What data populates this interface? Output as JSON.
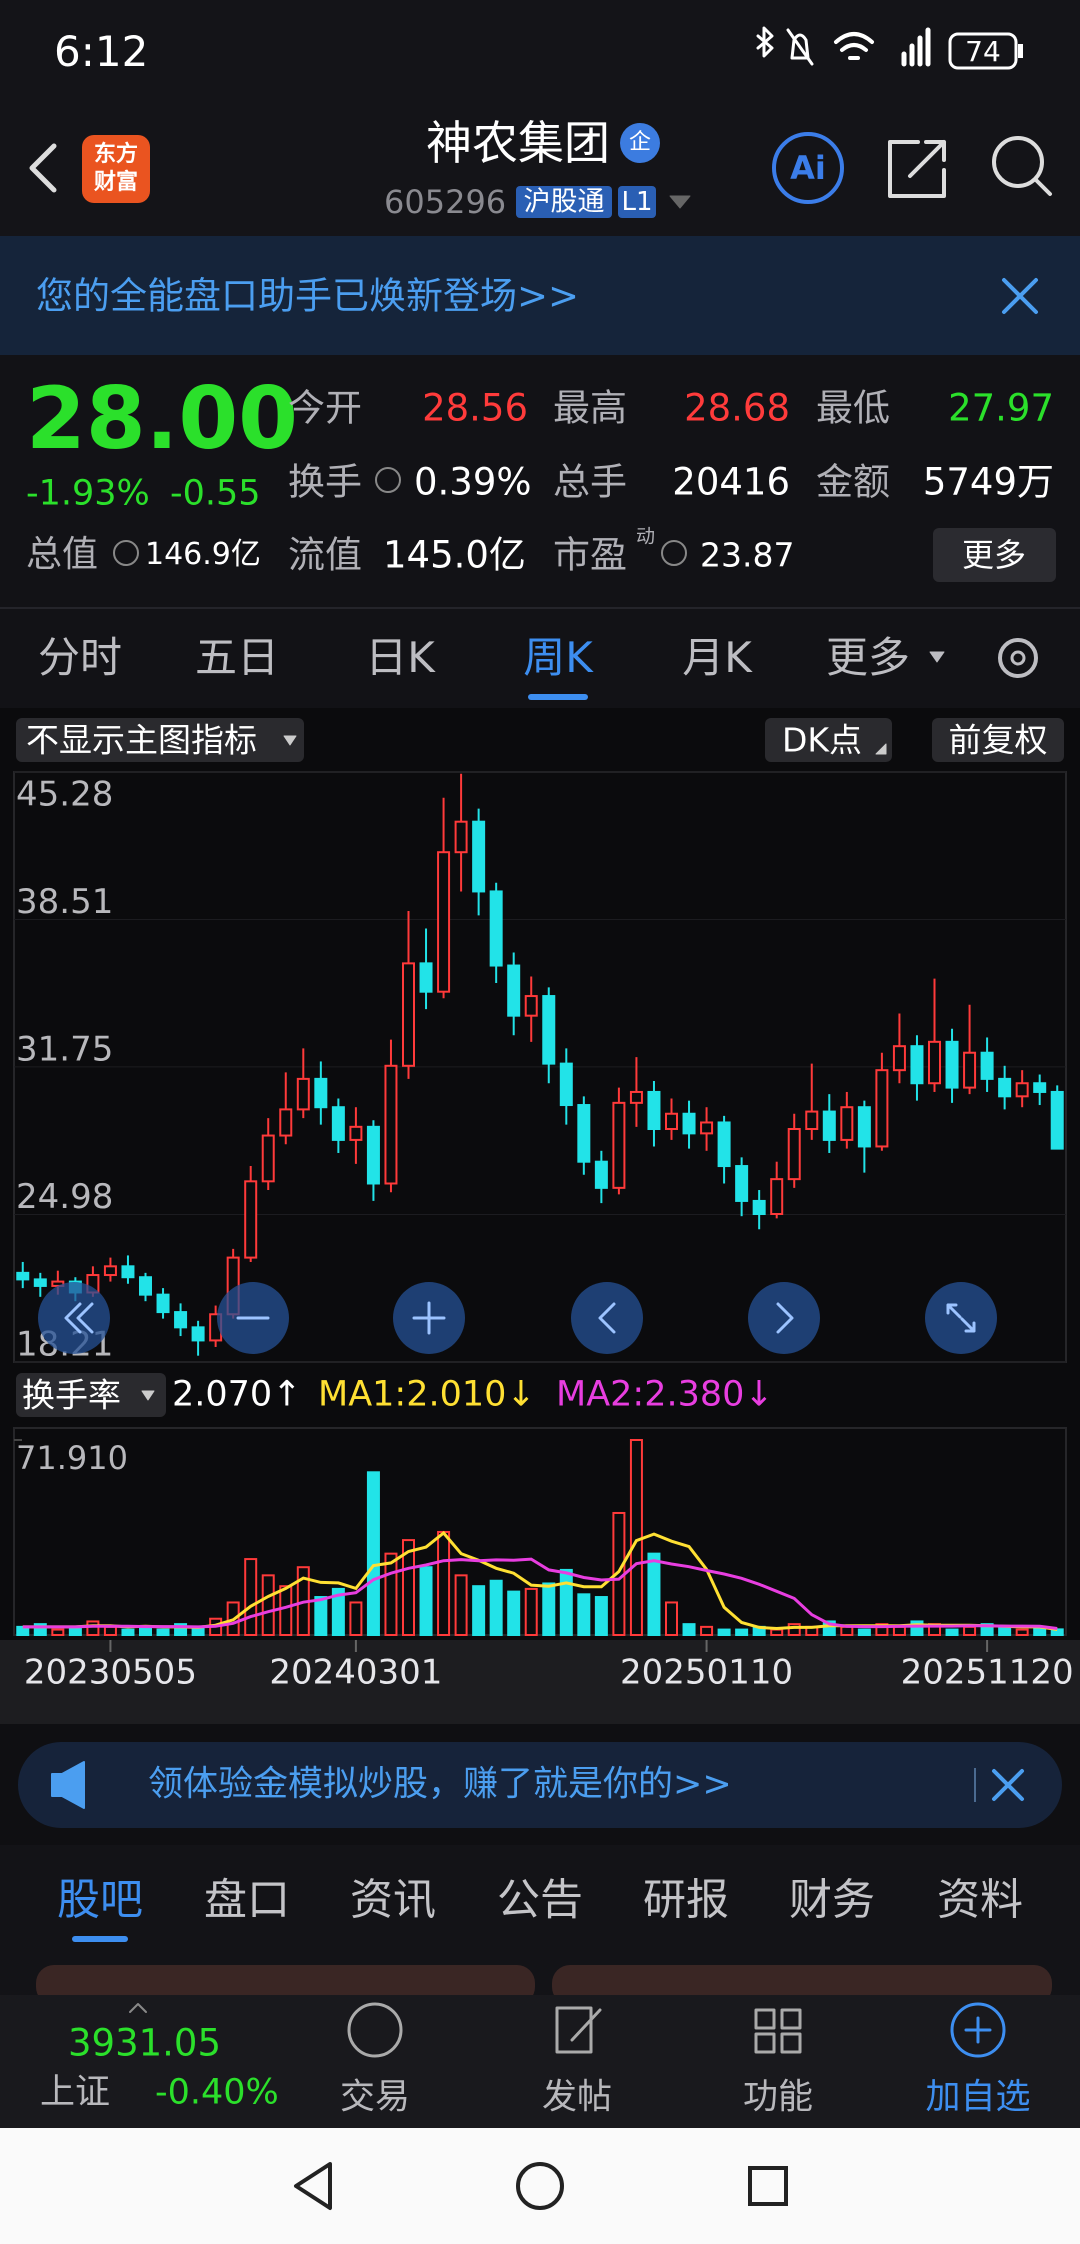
{
  "status_bar": {
    "time": "6:12",
    "battery": "74"
  },
  "header": {
    "logo_top": "东方",
    "logo_bottom": "财富",
    "title": "神农集团",
    "badge": "企",
    "code": "605296",
    "tag": "沪股通",
    "level": "L1",
    "ai": "Ai"
  },
  "banner": {
    "text": "您的全能盘口助手已焕新登场>>"
  },
  "quote": {
    "price": "28.00",
    "change_pct": "-1.93%",
    "change": "-0.55",
    "market_cap_label": "总值",
    "market_cap": "146.9亿",
    "fields": [
      {
        "label": "今开",
        "value": "28.56"
      },
      {
        "label": "最高",
        "value": "28.68"
      },
      {
        "label": "最低",
        "value": "27.97"
      },
      {
        "label": "换手",
        "value": "0.39%"
      },
      {
        "label": "总手",
        "value": "20416"
      },
      {
        "label": "金额",
        "value": "5749万"
      },
      {
        "label": "流值",
        "value": "145.0亿"
      },
      {
        "label": "市盈",
        "value": "23.87"
      }
    ],
    "pe_tag": "动",
    "more": "更多"
  },
  "period_tabs": {
    "items": [
      "分时",
      "五日",
      "日K",
      "周K",
      "月K",
      "更多"
    ],
    "active": 3
  },
  "toolbar": {
    "indicator": "不显示主图指标",
    "dk": "DK点",
    "adjust": "前复权"
  },
  "chart_data": [
    {
      "type": "candlestick",
      "up_color": "#ff3a3a",
      "down_color": "#22e3e8",
      "ylim": [
        18.21,
        45.28
      ],
      "yticks": [
        45.28,
        38.51,
        31.75,
        24.98,
        18.21
      ],
      "grid": true,
      "open": [
        22.3,
        22.0,
        21.7,
        21.9,
        21.4,
        22.2,
        22.6,
        22.1,
        21.3,
        20.5,
        19.8,
        19.2,
        20.4,
        23.0,
        26.5,
        28.6,
        29.8,
        31.2,
        29.9,
        28.4,
        29.0,
        26.4,
        31.8,
        36.5,
        35.2,
        41.6,
        43.0,
        39.8,
        36.4,
        34.1,
        35.0,
        31.9,
        30.0,
        27.4,
        26.2,
        30.1,
        30.6,
        28.9,
        29.6,
        28.7,
        29.2,
        27.2,
        25.6,
        25.0,
        26.6,
        28.9,
        29.7,
        28.4,
        29.9,
        28.1,
        31.6,
        32.7,
        31.0,
        32.9,
        30.8,
        32.4,
        31.2,
        30.4,
        31.0,
        30.6
      ],
      "close": [
        22.0,
        21.7,
        21.9,
        21.4,
        22.2,
        22.6,
        22.1,
        21.3,
        20.5,
        19.8,
        19.2,
        20.4,
        23.0,
        26.5,
        28.6,
        29.8,
        31.2,
        29.9,
        28.4,
        29.0,
        26.4,
        31.8,
        36.5,
        35.2,
        41.6,
        43.0,
        39.8,
        36.4,
        34.1,
        35.0,
        31.9,
        30.0,
        27.4,
        26.2,
        30.1,
        30.6,
        28.9,
        29.6,
        28.7,
        29.2,
        27.2,
        25.6,
        25.0,
        26.6,
        28.9,
        29.7,
        28.4,
        29.9,
        28.1,
        31.6,
        32.7,
        31.0,
        32.9,
        30.8,
        32.4,
        31.2,
        30.4,
        31.0,
        30.6,
        28.0
      ],
      "high": [
        22.8,
        22.3,
        22.4,
        22.1,
        22.6,
        23.0,
        23.1,
        22.3,
        21.6,
        20.9,
        20.1,
        20.8,
        23.4,
        27.2,
        29.4,
        31.5,
        32.6,
        32.0,
        30.3,
        29.9,
        29.3,
        33.0,
        38.9,
        38.1,
        44.1,
        45.2,
        43.6,
        40.2,
        37.0,
        35.9,
        35.4,
        32.6,
        30.4,
        27.9,
        30.8,
        32.2,
        31.1,
        30.3,
        30.2,
        29.9,
        29.5,
        27.6,
        26.1,
        27.4,
        29.6,
        31.9,
        30.5,
        30.6,
        30.2,
        32.4,
        34.2,
        33.2,
        35.8,
        33.5,
        34.6,
        33.1,
        31.8,
        31.6,
        31.4,
        30.9
      ],
      "low": [
        21.6,
        21.2,
        21.3,
        21.0,
        21.2,
        21.9,
        21.8,
        21.0,
        20.2,
        19.4,
        18.5,
        18.9,
        20.2,
        22.8,
        26.1,
        28.2,
        29.4,
        29.1,
        27.8,
        27.3,
        25.6,
        26.0,
        31.2,
        34.4,
        34.9,
        39.8,
        38.7,
        35.6,
        33.2,
        32.9,
        31.0,
        29.1,
        26.8,
        25.5,
        25.9,
        29.0,
        28.1,
        28.4,
        28.0,
        27.9,
        26.4,
        24.9,
        24.3,
        24.8,
        26.2,
        28.4,
        27.8,
        28.0,
        26.9,
        27.9,
        31.0,
        30.2,
        30.6,
        30.1,
        30.5,
        30.6,
        29.8,
        29.9,
        30.0,
        27.97
      ]
    },
    {
      "type": "bar",
      "title": "换手率",
      "current_label": "2.070↑",
      "ylim": [
        0,
        71.91
      ],
      "yticks": [
        {
          "value": 71.91,
          "label": "71.910"
        }
      ],
      "xticks": [
        {
          "value": 5,
          "label": "20230505"
        },
        {
          "value": 19,
          "label": "20240301"
        },
        {
          "value": 39,
          "label": "20250110"
        },
        {
          "value": 55,
          "label": "20251120"
        }
      ],
      "values": [
        3,
        4,
        2,
        3,
        5,
        3,
        2,
        3,
        2,
        4,
        3,
        6,
        12,
        28,
        22,
        18,
        25,
        14,
        17,
        12,
        60,
        30,
        35,
        25,
        38,
        22,
        18,
        20,
        16,
        17,
        19,
        24,
        15,
        14,
        45,
        71.91,
        30,
        12,
        4,
        3,
        2,
        2,
        3,
        2,
        4,
        3,
        5,
        3,
        2,
        4,
        3,
        5,
        4,
        2,
        3,
        4,
        3,
        2,
        3,
        2.07
      ],
      "series": [
        {
          "name": "MA1:2.010↓",
          "color": "#ffe033",
          "values": [
            3,
            3,
            3,
            3,
            3.4,
            3.4,
            3,
            3.2,
            3,
            3,
            2.8,
            3.6,
            5.6,
            10.6,
            14.2,
            17.2,
            21,
            19.4,
            19.2,
            17.2,
            25.6,
            26.6,
            30.8,
            32.4,
            37.6,
            30,
            27.6,
            24.6,
            22.8,
            18.4,
            18,
            19.2,
            17.8,
            17.8,
            23.4,
            34.8,
            37.2,
            34.6,
            32.6,
            24.2,
            10.2,
            4.6,
            2.8,
            2.4,
            2.8,
            2.8,
            3.4,
            3.4,
            3.4,
            3.4,
            3.4,
            3.8,
            3.6,
            3.6,
            3.6,
            3.4,
            3.2,
            3,
            3,
            2.01
          ]
        },
        {
          "name": "MA2:2.380↓",
          "color": "#e83ee0",
          "values": [
            3,
            3,
            3,
            3,
            3.2,
            3.2,
            3.2,
            3.1,
            3.1,
            3.1,
            3,
            3.2,
            4.3,
            6.8,
            8.6,
            10.2,
            12.1,
            13,
            14.7,
            15.6,
            20.4,
            22.8,
            24.6,
            25.8,
            27.4,
            27.8,
            27.4,
            27.7,
            27.6,
            28,
            24,
            22.9,
            21.2,
            20.3,
            20.6,
            26.3,
            27.4,
            26.2,
            25.2,
            23.8,
            22.5,
            20.9,
            18.7,
            16.1,
            13.5,
            7.5,
            4.1,
            3.2,
            3.1,
            3.1,
            3.2,
            3.3,
            3.3,
            3.3,
            3.4,
            3.4,
            3.3,
            3.3,
            3.2,
            2.38
          ]
        }
      ]
    }
  ],
  "promo": {
    "text": "领体验金模拟炒股，赚了就是你的>>"
  },
  "content_tabs": {
    "items": [
      "股吧",
      "盘口",
      "资讯",
      "公告",
      "研报",
      "财务",
      "资料"
    ],
    "active": 0
  },
  "bottom_nav": {
    "index_value": "3931.05",
    "index_name": "上证",
    "index_change": "-0.40%",
    "items": [
      "交易",
      "发帖",
      "功能",
      "加自选"
    ]
  }
}
